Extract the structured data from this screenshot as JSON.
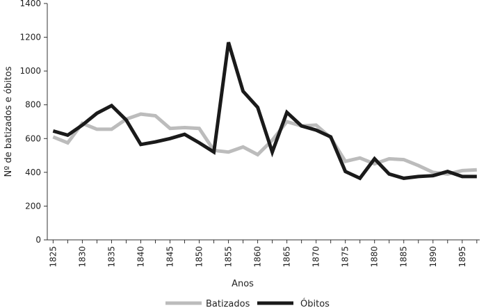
{
  "chart_data": {
    "type": "line",
    "title": "",
    "xlabel": "Anos",
    "ylabel": "Nº de batizados e óbitos",
    "xlim": [
      1824,
      1898
    ],
    "ylim": [
      0,
      1400
    ],
    "yticks": [
      0,
      200,
      400,
      600,
      800,
      1000,
      1200,
      1400
    ],
    "xticks": [
      1825,
      1830,
      1835,
      1840,
      1845,
      1850,
      1855,
      1860,
      1865,
      1870,
      1875,
      1880,
      1885,
      1890,
      1895
    ],
    "grid": false,
    "legend": "bottom",
    "x": [
      1825,
      1827.5,
      1830,
      1832.5,
      1835,
      1837.5,
      1840,
      1842.5,
      1845,
      1847.5,
      1850,
      1852.5,
      1855,
      1857.5,
      1860,
      1862.5,
      1865,
      1867.5,
      1870,
      1872.5,
      1875,
      1877.5,
      1880,
      1882.5,
      1885,
      1887.5,
      1890,
      1892.5,
      1895,
      1897.5
    ],
    "series": [
      {
        "name": "Batizados",
        "color": "#bcbcbc",
        "values": [
          610,
          575,
          690,
          655,
          655,
          715,
          745,
          735,
          660,
          665,
          660,
          530,
          520,
          550,
          505,
          590,
          700,
          675,
          680,
          605,
          465,
          485,
          450,
          480,
          475,
          440,
          400,
          390,
          410,
          415
        ]
      },
      {
        "name": "Óbitos",
        "color": "#1a1a1a",
        "values": [
          645,
          620,
          680,
          750,
          795,
          710,
          565,
          580,
          600,
          625,
          575,
          520,
          1170,
          880,
          785,
          520,
          755,
          675,
          650,
          610,
          405,
          365,
          480,
          390,
          365,
          375,
          380,
          405,
          375,
          375
        ]
      }
    ]
  }
}
